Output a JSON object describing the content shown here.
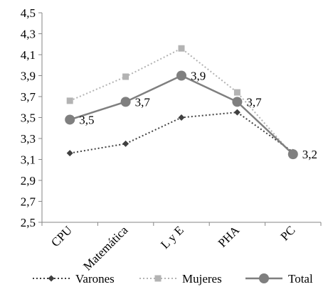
{
  "chart_data": {
    "type": "line",
    "categories": [
      "CPU",
      "Matemática",
      "L y E",
      "PHA",
      "PC"
    ],
    "ylim": [
      2.5,
      4.5
    ],
    "yticks": [
      2.5,
      2.7,
      2.9,
      3.1,
      3.3,
      3.5,
      3.7,
      3.9,
      4.1,
      4.3,
      4.5
    ],
    "ytick_labels": [
      "2,5",
      "2,7",
      "2,9",
      "3,1",
      "3,3",
      "3,5",
      "3,7",
      "3,9",
      "4,1",
      "4,3",
      "4,5"
    ],
    "grid": false,
    "legend_position": "bottom",
    "series": [
      {
        "name": "Varones",
        "values": [
          3.16,
          3.25,
          3.5,
          3.55,
          3.17
        ],
        "color": "#404040",
        "line_style": "dotted",
        "marker": "diamond"
      },
      {
        "name": "Mujeres",
        "values": [
          3.66,
          3.89,
          4.16,
          3.74,
          3.14
        ],
        "color": "#b3b3b3",
        "line_style": "dotted",
        "marker": "square"
      },
      {
        "name": "Total",
        "values": [
          3.48,
          3.65,
          3.9,
          3.65,
          3.15
        ],
        "color": "#7f7f7f",
        "line_style": "solid",
        "marker": "circle",
        "data_labels": [
          "3,5",
          "3,7",
          "3,9",
          "3,7",
          "3,2"
        ]
      }
    ]
  }
}
